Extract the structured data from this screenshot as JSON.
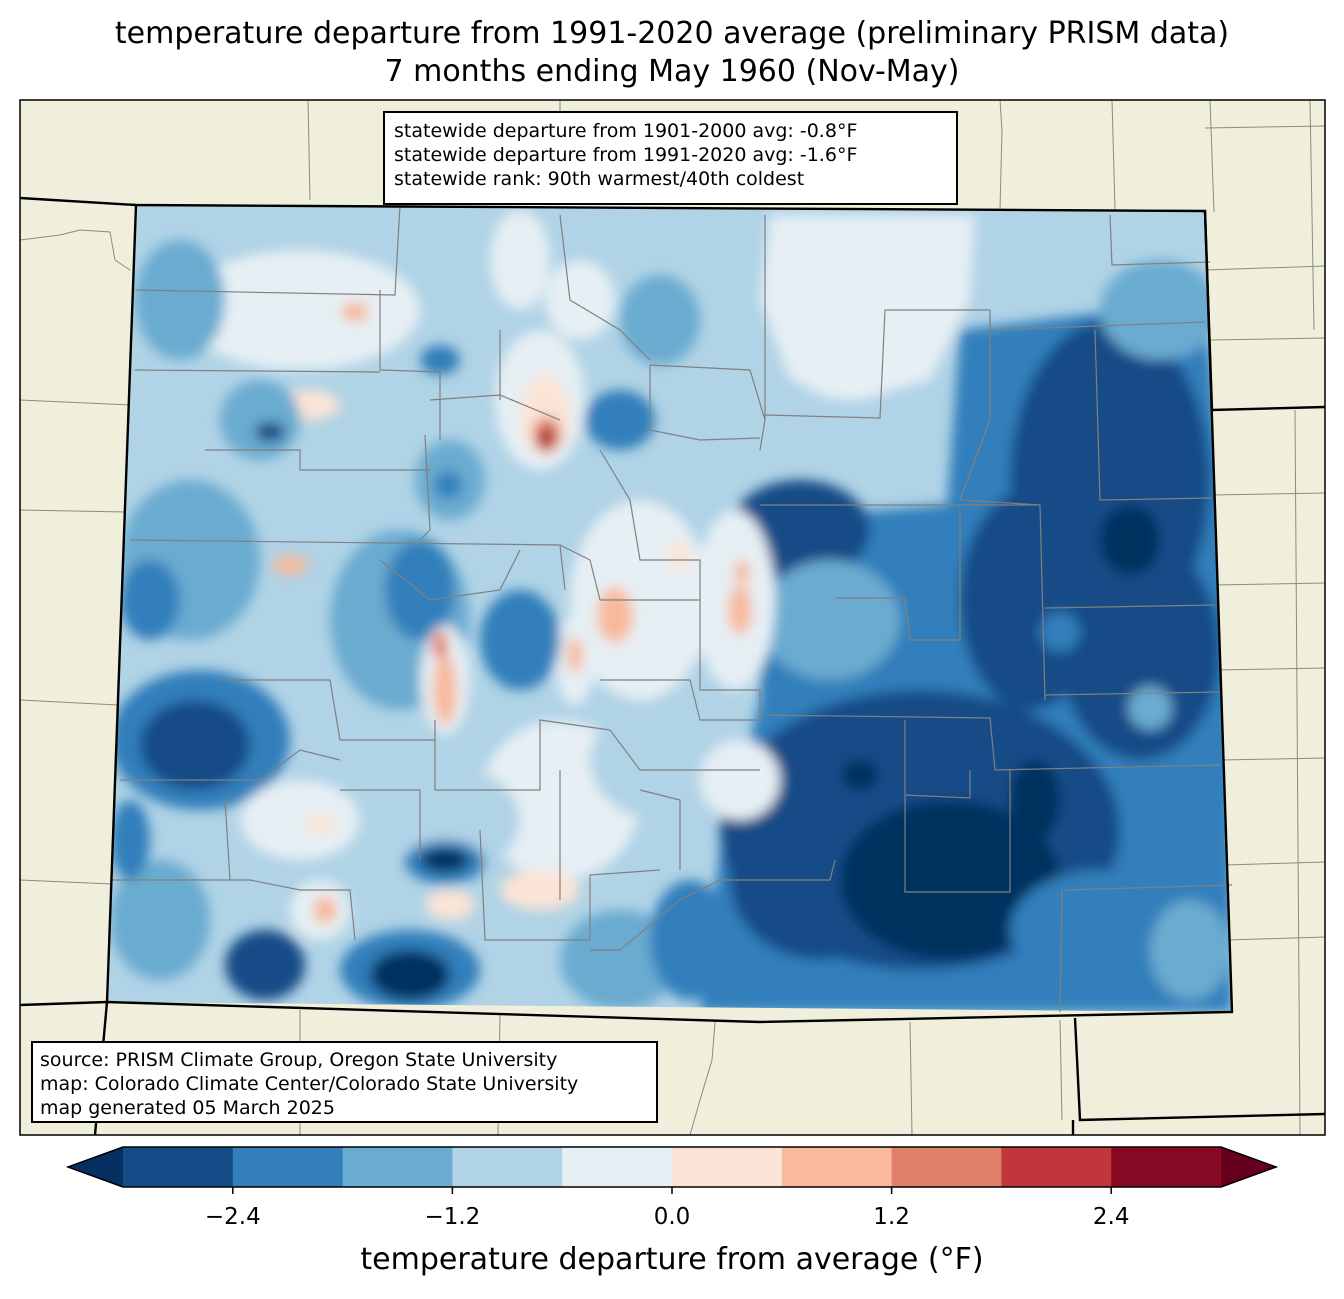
{
  "title": {
    "line1": "temperature departure from 1991-2020 average (preliminary PRISM data)",
    "line2": "7 months ending May 1960 (Nov-May)"
  },
  "stats": {
    "line1": "statewide departure from 1901-2000 avg: -0.8°F",
    "line2": "statewide departure from 1991-2020 avg: -1.6°F",
    "line3": "statewide rank: 90th warmest/40th coldest"
  },
  "source": {
    "line1": "source: PRISM Climate Group, Oregon State University",
    "line2": "map: Colorado Climate Center/Colorado State University",
    "line3": "map generated 05 March 2025"
  },
  "colorbar": {
    "label": "temperature departure from average (°F)",
    "ticks": [
      "−2.4",
      "−1.2",
      "0.0",
      "1.2",
      "2.4"
    ],
    "tick_values": [
      -2.4,
      -1.2,
      0.0,
      1.2,
      2.4
    ],
    "range": [
      -3.0,
      3.0
    ],
    "colors": {
      "under": "#053061",
      "bins": [
        "#134c87",
        "#327fbb",
        "#6aabd0",
        "#b0d3e6",
        "#e6eff4",
        "#fbe4d6",
        "#f8b99c",
        "#e27f68",
        "#c0363b",
        "#880923"
      ],
      "over": "#67001f"
    }
  },
  "map_colors": {
    "land_outside": "#efefdb",
    "border": "#000000",
    "county_lines": "#808080"
  }
}
